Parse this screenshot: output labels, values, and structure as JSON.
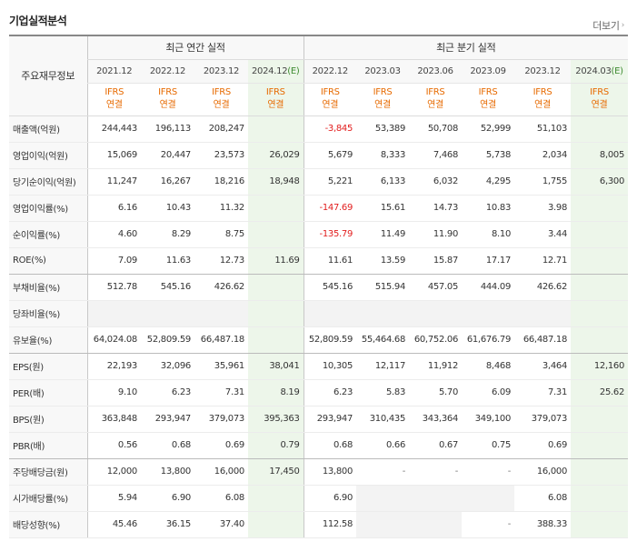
{
  "header": {
    "title": "기업실적분석",
    "more_label": "더보기"
  },
  "table": {
    "corner_label": "주요재무정보",
    "group_annual": "최근 연간 실적",
    "group_quarterly": "최근 분기 실적",
    "periods": [
      "2021.12",
      "2022.12",
      "2023.12",
      "2024.12(E)",
      "2022.12",
      "2023.03",
      "2023.06",
      "2023.09",
      "2023.12",
      "2024.03(E)"
    ],
    "ifrs_top": "IFRS",
    "ifrs_bottom": "연결",
    "rows": [
      {
        "label": "매출액(억원)",
        "values": [
          "244,443",
          "196,113",
          "208,247",
          "",
          "-3,845",
          "53,389",
          "50,708",
          "52,999",
          "51,103",
          ""
        ]
      },
      {
        "label": "영업이익(억원)",
        "values": [
          "15,069",
          "20,447",
          "23,573",
          "26,029",
          "5,679",
          "8,333",
          "7,468",
          "5,738",
          "2,034",
          "8,005"
        ]
      },
      {
        "label": "당기순이익(억원)",
        "values": [
          "11,247",
          "16,267",
          "18,216",
          "18,948",
          "5,221",
          "6,133",
          "6,032",
          "4,295",
          "1,755",
          "6,300"
        ]
      },
      {
        "label": "영업이익률(%)",
        "values": [
          "6.16",
          "10.43",
          "11.32",
          "",
          "-147.69",
          "15.61",
          "14.73",
          "10.83",
          "3.98",
          ""
        ]
      },
      {
        "label": "순이익률(%)",
        "values": [
          "4.60",
          "8.29",
          "8.75",
          "",
          "-135.79",
          "11.49",
          "11.90",
          "8.10",
          "3.44",
          ""
        ]
      },
      {
        "label": "ROE(%)",
        "values": [
          "7.09",
          "11.63",
          "12.73",
          "11.69",
          "11.61",
          "13.59",
          "15.87",
          "17.17",
          "12.71",
          ""
        ]
      },
      {
        "label": "부채비율(%)",
        "values": [
          "512.78",
          "545.16",
          "426.62",
          "",
          "545.16",
          "515.94",
          "457.05",
          "444.09",
          "426.62",
          ""
        ]
      },
      {
        "label": "당좌비율(%)",
        "values": [
          "",
          "",
          "",
          "",
          "",
          "",
          "",
          "",
          "",
          ""
        ]
      },
      {
        "label": "유보율(%)",
        "values": [
          "64,024.08",
          "52,809.59",
          "66,487.18",
          "",
          "52,809.59",
          "55,464.68",
          "60,752.06",
          "61,676.79",
          "66,487.18",
          ""
        ]
      },
      {
        "label": "EPS(원)",
        "values": [
          "22,193",
          "32,096",
          "35,961",
          "38,041",
          "10,305",
          "12,117",
          "11,912",
          "8,468",
          "3,464",
          "12,160"
        ]
      },
      {
        "label": "PER(배)",
        "values": [
          "9.10",
          "6.23",
          "7.31",
          "8.19",
          "6.23",
          "5.83",
          "5.70",
          "6.09",
          "7.31",
          "25.62"
        ]
      },
      {
        "label": "BPS(원)",
        "values": [
          "363,848",
          "293,947",
          "379,073",
          "395,363",
          "293,947",
          "310,435",
          "343,364",
          "349,100",
          "379,073",
          ""
        ]
      },
      {
        "label": "PBR(배)",
        "values": [
          "0.56",
          "0.68",
          "0.69",
          "0.79",
          "0.68",
          "0.66",
          "0.67",
          "0.75",
          "0.69",
          ""
        ]
      },
      {
        "label": "주당배당금(원)",
        "values": [
          "12,000",
          "13,800",
          "16,000",
          "17,450",
          "13,800",
          "-",
          "-",
          "-",
          "16,000",
          ""
        ]
      },
      {
        "label": "시가배당률(%)",
        "values": [
          "5.94",
          "6.90",
          "6.08",
          "",
          "6.90",
          "",
          "",
          "",
          "6.08",
          ""
        ]
      },
      {
        "label": "배당성향(%)",
        "values": [
          "45.46",
          "36.15",
          "37.40",
          "",
          "112.58",
          "",
          "",
          "-",
          "388.33",
          ""
        ]
      }
    ]
  },
  "colors": {
    "ifrs": "#e76a00",
    "estimate_bg": "#edf6ea",
    "negative": "#e21d1d"
  }
}
